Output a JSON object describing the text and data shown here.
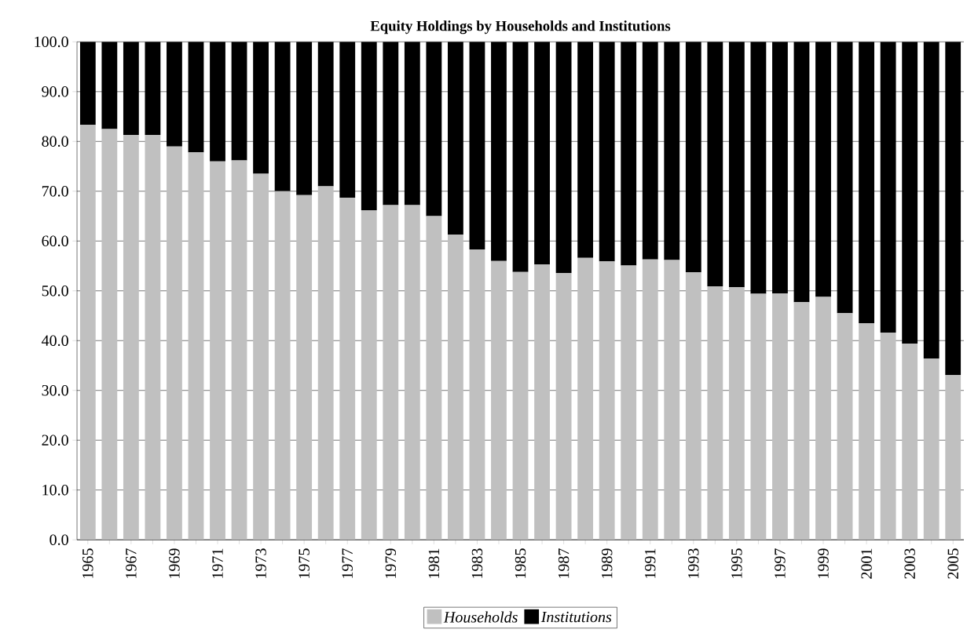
{
  "chart_data": {
    "type": "bar",
    "title": "Equity Holdings by Households and Institutions",
    "categories": [
      "1965",
      null,
      "1967",
      null,
      "1969",
      null,
      "1971",
      null,
      "1973",
      null,
      "1975",
      null,
      "1977",
      null,
      "1979",
      null,
      "1981",
      null,
      "1983",
      null,
      "1985",
      null,
      "1987",
      null,
      "1989",
      null,
      "1991",
      null,
      "1993",
      null,
      "1995",
      null,
      "1997",
      null,
      "1999",
      null,
      "2001",
      null,
      "2003",
      null,
      "2005"
    ],
    "series": [
      {
        "name": "Households",
        "color": "#c0c0c0",
        "values": [
          83.3,
          82.5,
          81.3,
          81.3,
          79.0,
          77.8,
          76.0,
          76.2,
          73.5,
          70.0,
          69.2,
          71.0,
          68.7,
          66.2,
          67.2,
          67.2,
          65.0,
          61.3,
          58.3,
          56.0,
          53.8,
          55.3,
          53.6,
          56.6,
          55.9,
          55.1,
          56.3,
          56.2,
          53.7,
          50.9,
          50.7,
          49.4,
          49.5,
          47.7,
          48.8,
          45.5,
          43.5,
          41.6,
          39.4,
          36.4,
          33.1
        ]
      },
      {
        "name": "Institutions",
        "color": "#000000",
        "values": [
          16.7,
          17.5,
          18.7,
          18.7,
          21.0,
          22.2,
          24.0,
          23.8,
          26.5,
          30.0,
          30.8,
          29.0,
          31.3,
          33.8,
          32.8,
          32.8,
          35.0,
          38.7,
          41.7,
          44.0,
          46.2,
          44.7,
          46.4,
          43.4,
          44.1,
          44.9,
          43.7,
          43.8,
          46.3,
          49.1,
          49.3,
          50.6,
          50.5,
          52.3,
          51.2,
          54.5,
          56.5,
          58.4,
          60.6,
          63.6,
          66.9
        ]
      }
    ],
    "stacked": true,
    "ylim": [
      0,
      100
    ],
    "yticks": [
      {
        "value": 0,
        "label": "0.0"
      },
      {
        "value": 10,
        "label": "10.0"
      },
      {
        "value": 20,
        "label": "20.0"
      },
      {
        "value": 30,
        "label": "30.0"
      },
      {
        "value": 40,
        "label": "40.0"
      },
      {
        "value": 50,
        "label": "50.0"
      },
      {
        "value": 60,
        "label": "60.0"
      },
      {
        "value": 70,
        "label": "70.0"
      },
      {
        "value": 80,
        "label": "80.0"
      },
      {
        "value": 90,
        "label": "90.0"
      },
      {
        "value": 100,
        "label": "100.0"
      }
    ],
    "grid": "y",
    "legend": "bottom"
  }
}
